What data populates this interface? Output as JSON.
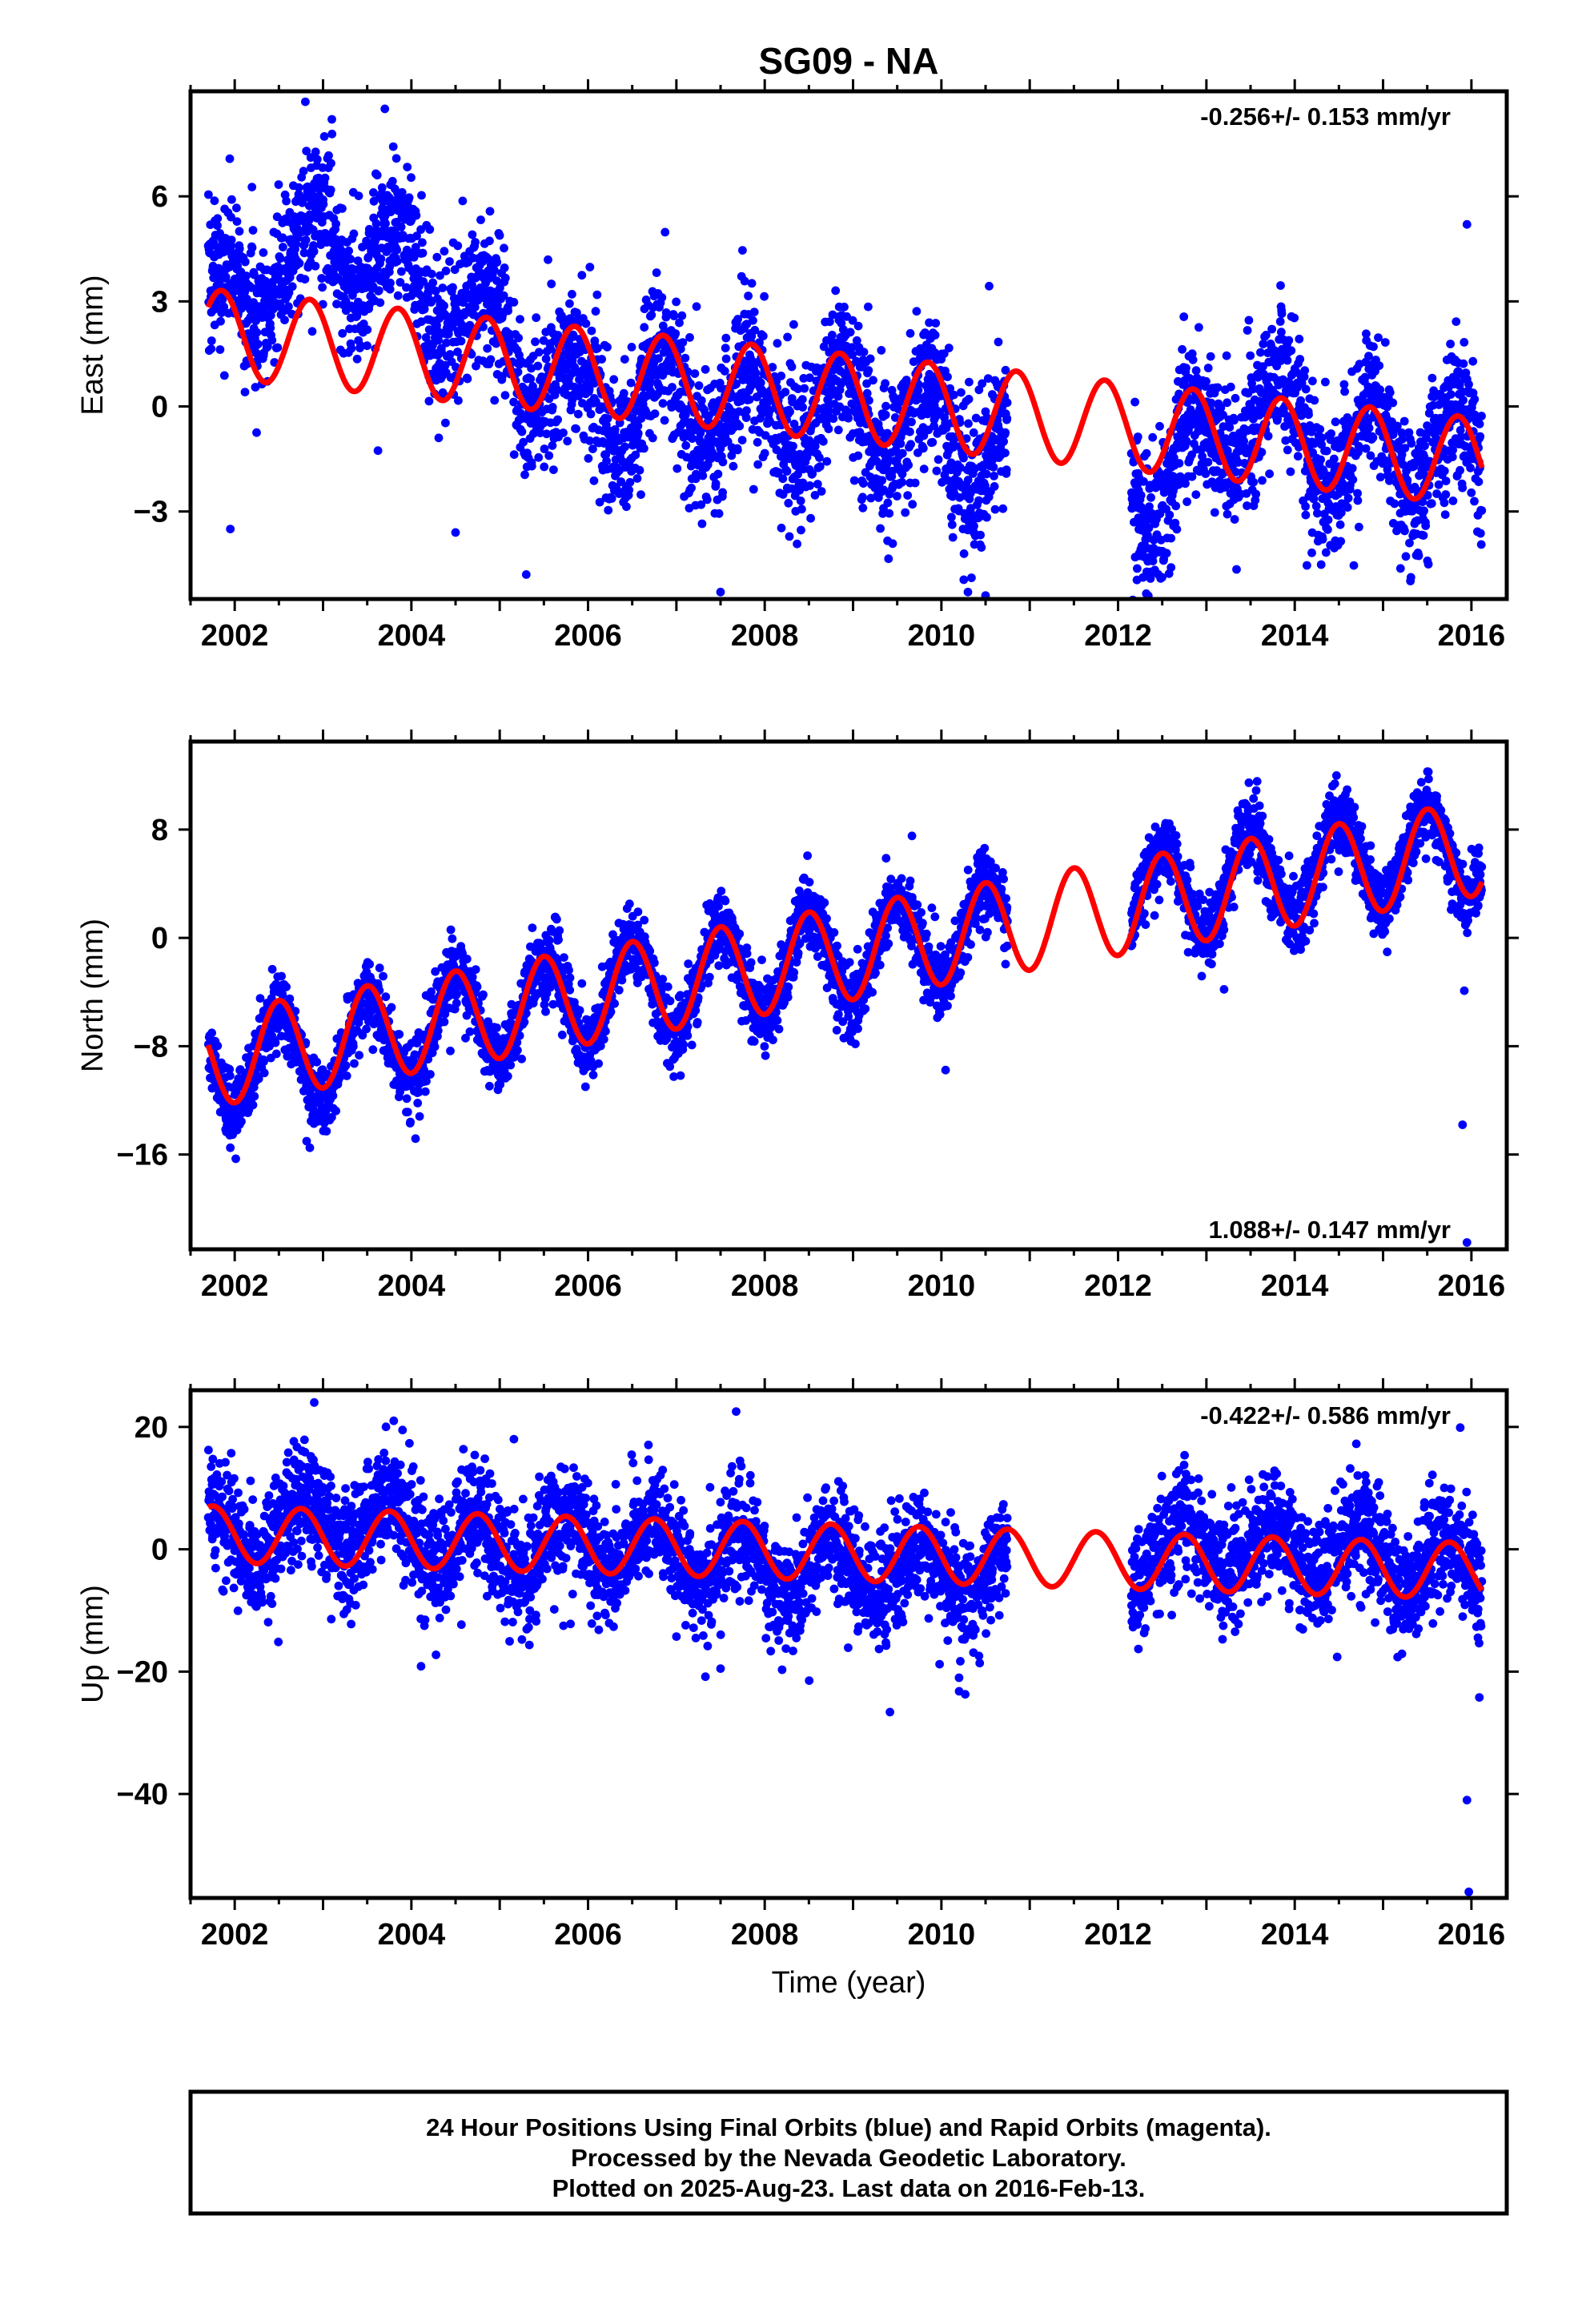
{
  "figure": {
    "title": "SG09 - NA",
    "xlabel": "Time (year)",
    "footer": [
      "24 Hour Positions Using Final Orbits (blue) and Rapid Orbits (magenta).",
      "Processed by the Nevada Geodetic Laboratory.",
      "Plotted on 2025-Aug-23. Last data on 2016-Feb-13."
    ]
  },
  "colors": {
    "points": "#0000ff",
    "model": "#ff0000",
    "frame": "#000000"
  },
  "chart_data": [
    {
      "type": "scatter",
      "component": "east",
      "ylabel": "East (mm)",
      "rate_label": "-0.256+/- 0.153 mm/yr",
      "rate_position": "top-right",
      "xlim": [
        2001.5,
        2016.4
      ],
      "ylim": [
        -5.5,
        9.0
      ],
      "x_ticks": [
        2002,
        2004,
        2006,
        2008,
        2010,
        2012,
        2014,
        2016
      ],
      "y_ticks": [
        6,
        3,
        0,
        -3
      ],
      "data_start": 2001.7,
      "data_end": 2016.12,
      "data_gap": [
        2010.75,
        2012.15
      ],
      "model": {
        "offset": 2.1,
        "trend": -0.256,
        "t0": 2001.7,
        "amplitude": 1.25,
        "peak_phase": 0.85
      },
      "scatter_sd": 1.05,
      "noise_anchors": [
        [
          2001.8,
          0.6
        ],
        [
          2003.0,
          3.0
        ],
        [
          2003.9,
          2.5
        ],
        [
          2005.0,
          0.6
        ],
        [
          2006.0,
          -0.8
        ],
        [
          2007.5,
          -0.6
        ],
        [
          2009.5,
          -0.5
        ],
        [
          2012.5,
          -1.6
        ],
        [
          2013.5,
          0.9
        ],
        [
          2014.5,
          0.0
        ],
        [
          2015.8,
          0.3
        ],
        [
          2016.1,
          0.0
        ]
      ],
      "outliers": [
        [
          2002.8,
          8.7
        ],
        [
          2003.1,
          8.2
        ],
        [
          2003.7,
          8.5
        ],
        [
          2015.95,
          5.2
        ],
        [
          2001.95,
          -3.5
        ],
        [
          2007.5,
          -5.3
        ],
        [
          2010.3,
          -5.3
        ],
        [
          2010.5,
          -5.4
        ],
        [
          2004.5,
          -3.6
        ],
        [
          2005.3,
          -4.8
        ],
        [
          2012.6,
          -4.6
        ]
      ]
    },
    {
      "type": "scatter",
      "component": "north",
      "ylabel": "North (mm)",
      "rate_label": "1.088+/- 0.147 mm/yr",
      "rate_position": "bottom-right",
      "xlim": [
        2001.5,
        2016.4
      ],
      "ylim": [
        -23.0,
        14.5
      ],
      "x_ticks": [
        2002,
        2004,
        2006,
        2008,
        2010,
        2012,
        2014,
        2016
      ],
      "y_ticks": [
        8,
        0,
        -8,
        -16
      ],
      "data_start": 2001.7,
      "data_end": 2016.12,
      "data_gap": [
        2010.75,
        2012.15
      ],
      "model": {
        "offset": -9.0,
        "trend": 1.088,
        "t0": 2001.7,
        "amplitude": 3.5,
        "peak_phase": 0.5
      },
      "scatter_sd": 1.3,
      "noise_anchors": [
        [
          2001.8,
          -0.5
        ],
        [
          2003.0,
          -1.0
        ],
        [
          2005.0,
          0.0
        ],
        [
          2007.0,
          0.0
        ],
        [
          2009.0,
          0.0
        ],
        [
          2010.7,
          0.0
        ],
        [
          2012.5,
          0.5
        ],
        [
          2014.5,
          0.5
        ],
        [
          2016.1,
          0.0
        ]
      ],
      "outliers": [
        [
          2015.9,
          -13.8
        ],
        [
          2015.95,
          -22.5
        ],
        [
          2015.92,
          -3.9
        ],
        [
          2013.2,
          -3.8
        ],
        [
          2001.95,
          -15.5
        ],
        [
          2002.85,
          -15.5
        ]
      ]
    },
    {
      "type": "scatter",
      "component": "up",
      "ylabel": "Up (mm)",
      "rate_label": "-0.422+/- 0.586 mm/yr",
      "rate_position": "top-right",
      "xlim": [
        2001.5,
        2016.4
      ],
      "ylim": [
        -57.0,
        26.0
      ],
      "x_ticks": [
        2002,
        2004,
        2006,
        2008,
        2010,
        2012,
        2014,
        2016
      ],
      "y_ticks": [
        20,
        0,
        -20,
        -40
      ],
      "data_start": 2001.7,
      "data_end": 2016.12,
      "data_gap": [
        2010.75,
        2012.15
      ],
      "model": {
        "offset": 2.5,
        "trend": -0.422,
        "t0": 2001.7,
        "amplitude": 4.6,
        "peak_phase": 0.75
      },
      "scatter_sd": 4.5,
      "noise_anchors": [
        [
          2001.8,
          0.0
        ],
        [
          2003.0,
          2.5
        ],
        [
          2004.0,
          2.5
        ],
        [
          2005.0,
          -1.5
        ],
        [
          2006.5,
          0.5
        ],
        [
          2008.0,
          -2.5
        ],
        [
          2009.5,
          -2.5
        ],
        [
          2010.6,
          -3.0
        ],
        [
          2012.5,
          2.5
        ],
        [
          2014.5,
          2.0
        ],
        [
          2016.1,
          0.0
        ]
      ],
      "outliers": [
        [
          2002.9,
          24.0
        ],
        [
          2003.8,
          21.0
        ],
        [
          2015.95,
          -41.0
        ],
        [
          2015.97,
          -56.0
        ],
        [
          2010.2,
          -21.0
        ],
        [
          2007.5,
          -19.5
        ],
        [
          2003.9,
          19.5
        ]
      ]
    }
  ]
}
